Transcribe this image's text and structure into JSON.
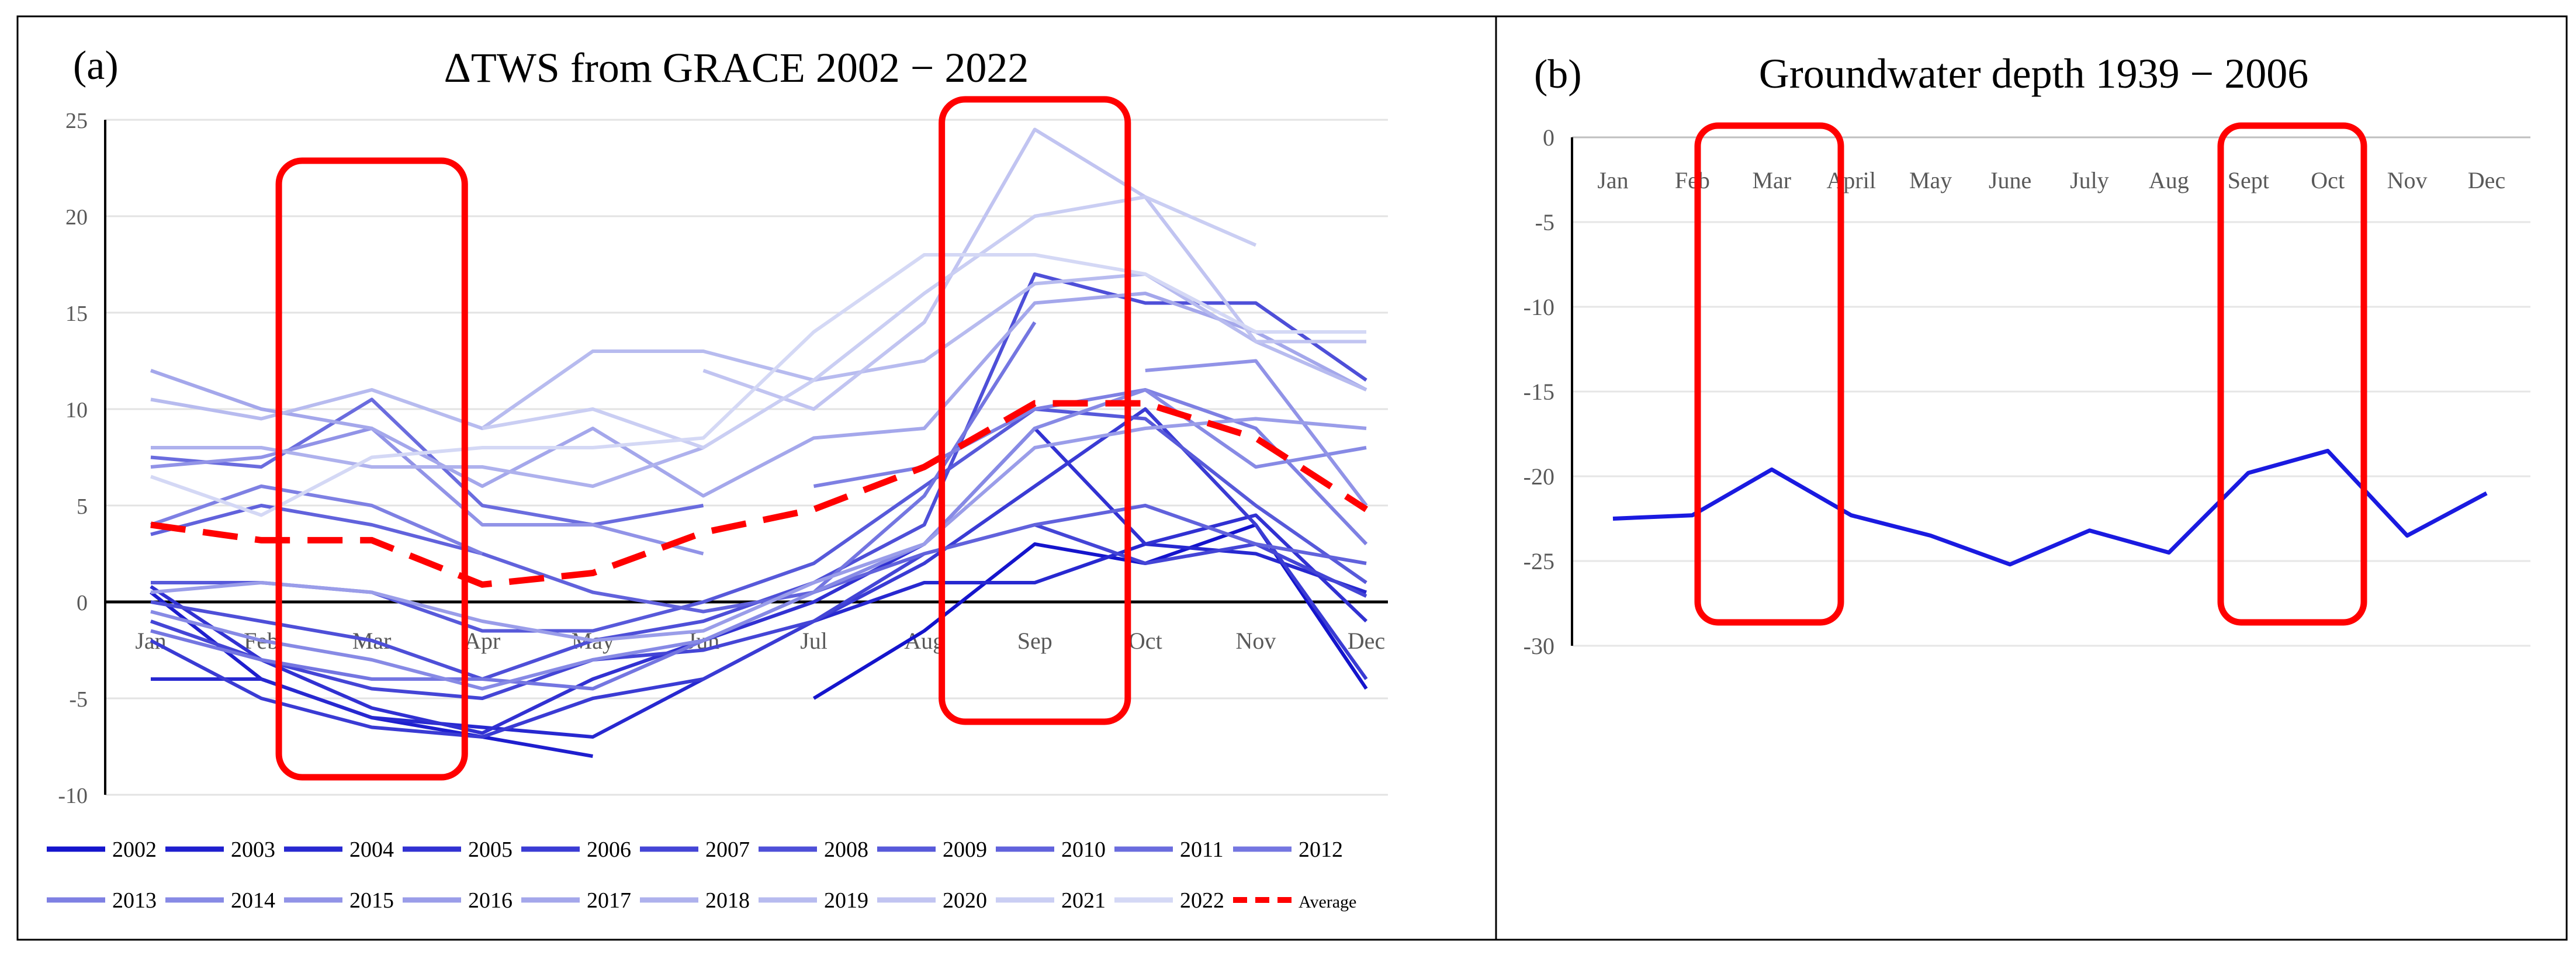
{
  "panel_labels": {
    "a": "(a)",
    "b": "(b)"
  },
  "colors": {
    "average": "#ff0000",
    "highlight": "#ff0000",
    "series_dark": "#1414cc",
    "series_light": "#d4d8f5",
    "gw_line": "#1a1ae0"
  },
  "chart_data": [
    {
      "type": "line",
      "title": "ΔTWS from GRACE 2002 − 2022",
      "categories": [
        "Jan",
        "Feb",
        "Mar",
        "Apr",
        "May",
        "Jun",
        "Jul",
        "Aug",
        "Sep",
        "Oct",
        "Nov",
        "Dec"
      ],
      "category_labels": [
        "Jan",
        "Feb",
        "Mar",
        "Apr",
        "May",
        "Jun",
        "Jul",
        "Aug",
        "Sep",
        "Oct",
        "Nov",
        "Dec"
      ],
      "yticks": [
        25,
        20,
        15,
        10,
        5,
        0,
        -5,
        -10
      ],
      "ylim": [
        -10,
        25
      ],
      "series": [
        {
          "name": "2002",
          "values": [
            null,
            null,
            null,
            null,
            null,
            null,
            -5,
            -1.5,
            3,
            2,
            4,
            -4.5
          ]
        },
        {
          "name": "2003",
          "values": [
            0.5,
            -4,
            -6,
            -7,
            -8,
            null,
            null,
            null,
            null,
            null,
            null,
            null
          ]
        },
        {
          "name": "2004",
          "values": [
            -4,
            -4,
            -6,
            -6.5,
            -7,
            -4,
            -1,
            1,
            1,
            3,
            2.5,
            0.5
          ]
        },
        {
          "name": "2005",
          "values": [
            0.8,
            -3,
            -5.5,
            -6.8,
            -4,
            -2,
            0,
            3,
            9,
            3,
            4.5,
            -1
          ]
        },
        {
          "name": "2006",
          "values": [
            -2,
            -5,
            -6.5,
            -7,
            -5,
            -4,
            -1,
            2,
            6,
            10,
            4,
            -4
          ]
        },
        {
          "name": "2007",
          "values": [
            -1,
            -3,
            -4.5,
            -5,
            -3,
            -2.5,
            -1,
            2.5,
            4,
            2,
            3,
            0.3
          ]
        },
        {
          "name": "2008",
          "values": [
            0,
            -1,
            -2,
            -4,
            -2,
            -1,
            1,
            4,
            17,
            15.5,
            15.5,
            11.5
          ]
        },
        {
          "name": "2009",
          "values": [
            1,
            1,
            0.5,
            -1.5,
            -1.5,
            0,
            2,
            6,
            10,
            9.5,
            5,
            1
          ]
        },
        {
          "name": "2010",
          "values": [
            3.5,
            5,
            4,
            2.5,
            0.5,
            -0.5,
            0.5,
            2.5,
            4,
            5,
            3,
            2
          ]
        },
        {
          "name": "2011",
          "values": [
            7.5,
            7,
            10.5,
            5,
            4,
            5,
            null,
            null,
            null,
            null,
            null,
            null
          ]
        },
        {
          "name": "2012",
          "values": [
            -1.5,
            -3,
            -4,
            -4,
            -4.5,
            -2,
            0.5,
            5.5,
            14.5,
            null,
            null,
            null
          ]
        },
        {
          "name": "2013",
          "values": [
            4,
            6,
            5,
            2.5,
            null,
            null,
            6,
            7,
            10,
            11,
            9,
            3
          ]
        },
        {
          "name": "2014",
          "values": [
            -0.5,
            -2,
            -3,
            -4.5,
            -3,
            -2,
            0.5,
            3,
            9,
            11,
            7,
            8
          ]
        },
        {
          "name": "2015",
          "values": [
            7,
            7.5,
            9,
            4,
            4,
            2.5,
            null,
            null,
            null,
            12,
            12.5,
            5
          ]
        },
        {
          "name": "2016",
          "values": [
            0.5,
            1,
            0.5,
            -1,
            -2,
            -1.5,
            1,
            3,
            8,
            9,
            9.5,
            9
          ]
        },
        {
          "name": "2017",
          "values": [
            12,
            10,
            9,
            6,
            9,
            5.5,
            8.5,
            9,
            15.5,
            16,
            14,
            11
          ]
        },
        {
          "name": "2018",
          "values": [
            8,
            8,
            7,
            7,
            6,
            8,
            null,
            null,
            null,
            null,
            null,
            null
          ]
        },
        {
          "name": "2019",
          "values": [
            10.5,
            9.5,
            11,
            9,
            13,
            13,
            11.5,
            12.5,
            16.5,
            17,
            13.5,
            11
          ]
        },
        {
          "name": "2020",
          "values": [
            null,
            null,
            null,
            null,
            null,
            12,
            10,
            14.5,
            24.5,
            21,
            13.5,
            13.5
          ]
        },
        {
          "name": "2021",
          "values": [
            null,
            null,
            null,
            9,
            10,
            8,
            11.5,
            16,
            20,
            21,
            18.5,
            null
          ]
        },
        {
          "name": "2022",
          "values": [
            6.5,
            4.5,
            7.5,
            8,
            8,
            8.5,
            14,
            18,
            18,
            17,
            14,
            14
          ]
        }
      ],
      "average": {
        "name": "Average",
        "values": [
          4,
          3.2,
          3.2,
          0.9,
          1.5,
          3.6,
          4.8,
          7,
          10.3,
          10.3,
          8.5,
          4.8
        ]
      },
      "highlights": [
        {
          "from": "Feb",
          "to": "Apr"
        },
        {
          "from": "Aug",
          "to": "Oct"
        }
      ]
    },
    {
      "type": "line",
      "title": "Groundwater depth 1939 − 2006",
      "categories": [
        "Jan",
        "Feb",
        "Mar",
        "April",
        "May",
        "June",
        "July",
        "Aug",
        "Sept",
        "Oct",
        "Nov",
        "Dec"
      ],
      "category_labels": [
        "Jan",
        "Feb",
        "Mar",
        "April",
        "May",
        "June",
        "July",
        "Aug",
        "Sept",
        "Oct",
        "Nov",
        "Dec"
      ],
      "yticks": [
        0,
        -5,
        -10,
        -15,
        -20,
        -25,
        -30
      ],
      "ylim": [
        -30,
        0
      ],
      "series": [
        {
          "name": "Groundwater depth",
          "values": [
            -22.5,
            -22.3,
            -19.6,
            -22.3,
            -23.5,
            -25.2,
            -23.2,
            -24.5,
            -19.8,
            -18.5,
            -23.5,
            -21
          ]
        }
      ],
      "highlights": [
        {
          "from": "Feb",
          "to": "April"
        },
        {
          "from": "Aug",
          "to": "Oct"
        }
      ]
    }
  ]
}
